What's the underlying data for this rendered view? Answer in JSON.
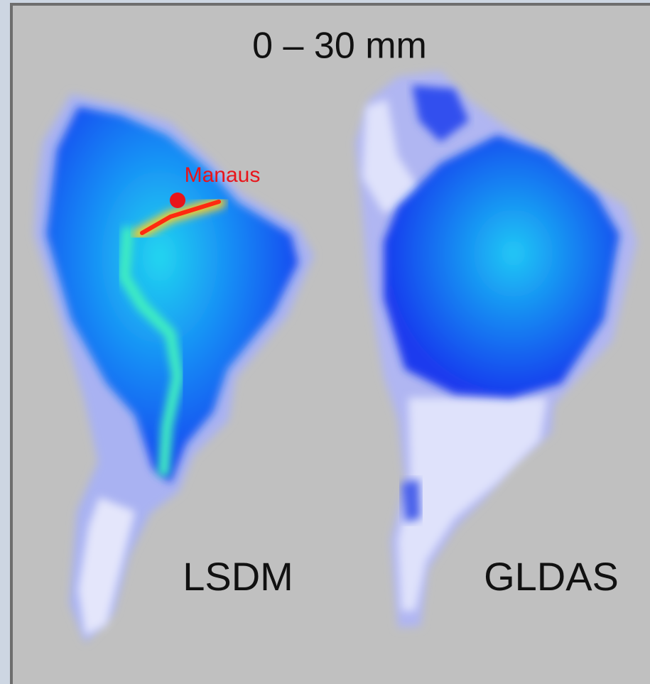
{
  "title": "0 – 30 mm",
  "maps": [
    {
      "label": "LSDM",
      "marker": "Manaus"
    },
    {
      "label": "GLDAS"
    }
  ]
}
